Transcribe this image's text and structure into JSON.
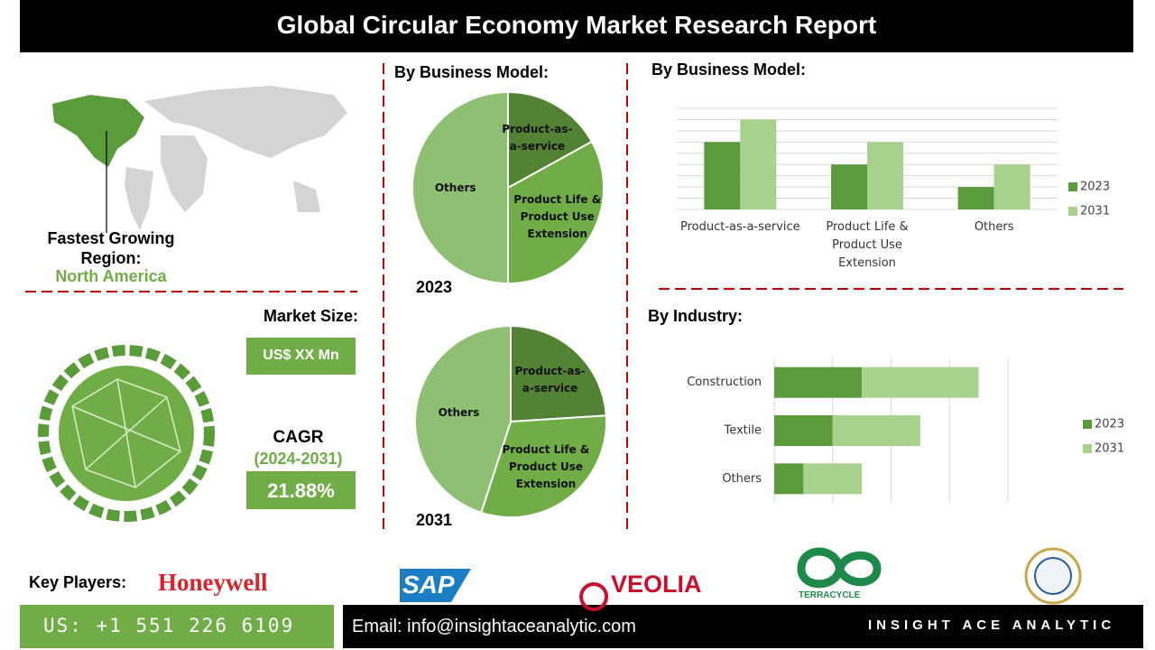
{
  "header": {
    "title": "Global Circular Economy Market Research Report"
  },
  "region": {
    "label": "Fastest Growing Region:",
    "value": "North America"
  },
  "market_size": {
    "label": "Market Size:",
    "value": "US$ XX Mn"
  },
  "cagr": {
    "label": "CAGR",
    "period": "(2024-2031)",
    "value": "21.88%"
  },
  "chart_data": [
    {
      "type": "pie",
      "title": "By Business Model:",
      "year_label": "2023",
      "categories": [
        "Product-as-a-service",
        "Product Life & Product Use Extension",
        "Others"
      ],
      "values": [
        17,
        33,
        50
      ],
      "colors": [
        "#548235",
        "#70ad47",
        "#8fbf73"
      ]
    },
    {
      "type": "pie",
      "year_label": "2031",
      "categories": [
        "Product-as-a-service",
        "Product Life & Product Use Extension",
        "Others"
      ],
      "values": [
        24,
        31,
        45
      ],
      "colors": [
        "#548235",
        "#70ad47",
        "#8fbf73"
      ]
    },
    {
      "type": "bar",
      "title": "By Business Model:",
      "categories": [
        "Product-as-a-service",
        "Product Life & Product Use Extension",
        "Others"
      ],
      "series": [
        {
          "name": "2023",
          "color": "#5b9b3c",
          "values": [
            6,
            4,
            2
          ]
        },
        {
          "name": "2031",
          "color": "#a9d18e",
          "values": [
            8,
            6,
            4
          ]
        }
      ],
      "ylim": [
        0,
        9
      ],
      "yticks": [
        0,
        1,
        2,
        3,
        4,
        5,
        6,
        7,
        8,
        9
      ],
      "grid": true,
      "tick_labels": false,
      "legend": "right"
    },
    {
      "type": "stacked_barh",
      "title": "By Industry:",
      "categories": [
        "Construction",
        "Textile",
        "Others"
      ],
      "series": [
        {
          "name": "2023",
          "color": "#5b9b3c",
          "values": [
            1.5,
            1,
            0.5
          ]
        },
        {
          "name": "2031",
          "color": "#a9d18e",
          "values": [
            2,
            1.5,
            1
          ]
        }
      ],
      "xlim": [
        0,
        4
      ],
      "xticks": [
        0,
        1,
        2,
        3,
        4
      ],
      "grid": true,
      "tick_labels": false,
      "legend": "right"
    }
  ],
  "key_players": {
    "label": "Key Players:",
    "logos": [
      "Honeywell",
      "SAP",
      "VEOLIA",
      "TERRACYCLE"
    ]
  },
  "footer": {
    "phone": "US: +1 551 226 6109",
    "email": "Email: info@insightaceanalytic.com",
    "brand": "INSIGHT ACE ANALYTIC"
  }
}
